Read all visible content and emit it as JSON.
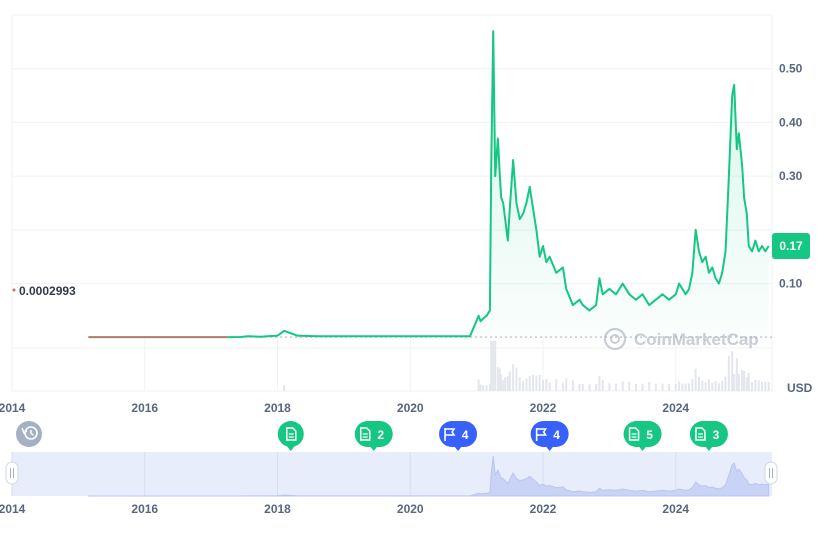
{
  "chart_data": {
    "type": "line",
    "currency": "USD",
    "y_ticks": [
      0.1,
      0.3,
      0.4,
      0.5
    ],
    "y_tick_labels": [
      "0.10",
      "0.30",
      "0.40",
      "0.50"
    ],
    "ylim": [
      -0.1,
      0.6
    ],
    "xlim": [
      2014.0,
      2025.45
    ],
    "x_ticks": [
      2014,
      2016,
      2018,
      2020,
      2022,
      2024
    ],
    "x_tick_labels": [
      "2014",
      "2016",
      "2018",
      "2020",
      "2022",
      "2024"
    ],
    "current_price": 0.17,
    "current_price_label": "0.17",
    "baseline_value": 0.0002993,
    "baseline_label": "0.0002993",
    "watermark": "CoinMarketCap",
    "grid": true,
    "series": [
      {
        "values_x": [
          2015.15,
          2016.5,
          2017.0,
          2017.25,
          2017.45,
          2017.55,
          2017.75,
          2017.85,
          2018.0,
          2018.1,
          2018.3,
          2018.6,
          2019.0,
          2019.5,
          2020.0,
          2020.5,
          2020.9,
          2021.03,
          2021.06,
          2021.1,
          2021.15,
          2021.2,
          2021.22,
          2021.25,
          2021.28,
          2021.32,
          2021.35,
          2021.37,
          2021.4,
          2021.43,
          2021.47,
          2021.5,
          2021.55,
          2021.6,
          2021.65,
          2021.7,
          2021.75,
          2021.8,
          2021.85,
          2021.9,
          2021.95,
          2022.0,
          2022.05,
          2022.1,
          2022.2,
          2022.3,
          2022.35,
          2022.45,
          2022.55,
          2022.6,
          2022.7,
          2022.8,
          2022.85,
          2022.9,
          2023.0,
          2023.1,
          2023.2,
          2023.3,
          2023.4,
          2023.5,
          2023.6,
          2023.7,
          2023.8,
          2023.9,
          2024.0,
          2024.05,
          2024.1,
          2024.15,
          2024.2,
          2024.25,
          2024.3,
          2024.35,
          2024.4,
          2024.45,
          2024.5,
          2024.55,
          2024.6,
          2024.65,
          2024.7,
          2024.75,
          2024.8,
          2024.85,
          2024.88,
          2024.92,
          2024.95,
          2025.0,
          2025.03,
          2025.07,
          2025.1,
          2025.15,
          2025.2,
          2025.25,
          2025.3,
          2025.35,
          2025.4
        ],
        "values_y": [
          0.0003,
          0.0003,
          0.0003,
          0.0003,
          0.0005,
          0.002,
          0.001,
          0.002,
          0.003,
          0.012,
          0.003,
          0.002,
          0.002,
          0.002,
          0.002,
          0.002,
          0.002,
          0.04,
          0.03,
          0.035,
          0.04,
          0.05,
          0.32,
          0.57,
          0.3,
          0.37,
          0.3,
          0.26,
          0.25,
          0.22,
          0.18,
          0.24,
          0.33,
          0.25,
          0.22,
          0.23,
          0.25,
          0.28,
          0.24,
          0.2,
          0.15,
          0.17,
          0.14,
          0.15,
          0.12,
          0.13,
          0.09,
          0.06,
          0.07,
          0.06,
          0.05,
          0.06,
          0.11,
          0.08,
          0.09,
          0.08,
          0.1,
          0.08,
          0.07,
          0.08,
          0.06,
          0.07,
          0.08,
          0.07,
          0.08,
          0.1,
          0.09,
          0.08,
          0.09,
          0.12,
          0.2,
          0.16,
          0.14,
          0.15,
          0.12,
          0.13,
          0.11,
          0.1,
          0.12,
          0.16,
          0.3,
          0.45,
          0.47,
          0.35,
          0.38,
          0.32,
          0.26,
          0.23,
          0.17,
          0.16,
          0.18,
          0.16,
          0.17,
          0.16,
          0.17
        ]
      }
    ],
    "events": [
      {
        "x": 2018.2,
        "icon": "document-icon",
        "count": "",
        "color": "#16c784"
      },
      {
        "x": 2019.45,
        "icon": "document-icon",
        "count": "2",
        "color": "#16c784"
      },
      {
        "x": 2020.72,
        "icon": "flag-icon",
        "count": "4",
        "color": "#3861fb"
      },
      {
        "x": 2022.1,
        "icon": "flag-icon",
        "count": "4",
        "color": "#3861fb"
      },
      {
        "x": 2023.5,
        "icon": "document-icon",
        "count": "5",
        "color": "#16c784"
      },
      {
        "x": 2024.5,
        "icon": "document-icon",
        "count": "3",
        "color": "#16c784"
      }
    ],
    "colors": {
      "line": "#16c784",
      "pre_line": "#b07a68",
      "brush_fill": "#e8edfb",
      "brush_line": "#c8d3f5",
      "grid": "#eff2f5"
    }
  }
}
